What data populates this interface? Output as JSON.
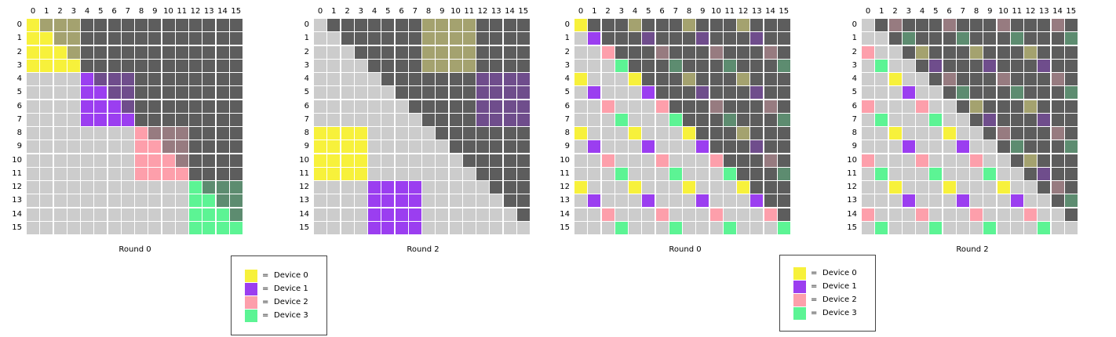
{
  "colors": {
    "upper": "#5d5d5d",
    "lower": "#cccccc",
    "grid_line": "#ffffff",
    "devices": [
      "#f7f13b",
      "#9b3ef0",
      "#fd9fab",
      "#5cf494"
    ],
    "devices_dim": [
      "#a4a26f",
      "#6f4d8c",
      "#977b80",
      "#5d8c70"
    ]
  },
  "axis_labels": [
    "0",
    "1",
    "2",
    "3",
    "4",
    "5",
    "6",
    "7",
    "8",
    "9",
    "10",
    "11",
    "12",
    "13",
    "14",
    "15"
  ],
  "diagrams": [
    {
      "caption": "Round 0",
      "ownership": "block",
      "round": 0
    },
    {
      "caption": "Round 2",
      "ownership": "block",
      "round": 2
    },
    {
      "caption": "Round 0",
      "ownership": "cyclic",
      "round": 0
    },
    {
      "caption": "Round 2",
      "ownership": "cyclic",
      "round": 2
    }
  ],
  "legends": [
    {
      "items": [
        {
          "eq": "=",
          "label": "Device 0"
        },
        {
          "eq": "=",
          "label": "Device 1"
        },
        {
          "eq": "=",
          "label": "Device 2"
        },
        {
          "eq": "=",
          "label": "Device 3"
        }
      ]
    },
    {
      "items": [
        {
          "eq": "=",
          "label": "Device 0"
        },
        {
          "eq": "=",
          "label": "Device 1"
        },
        {
          "eq": "=",
          "label": "Device 2"
        },
        {
          "eq": "=",
          "label": "Device 3"
        }
      ]
    }
  ]
}
